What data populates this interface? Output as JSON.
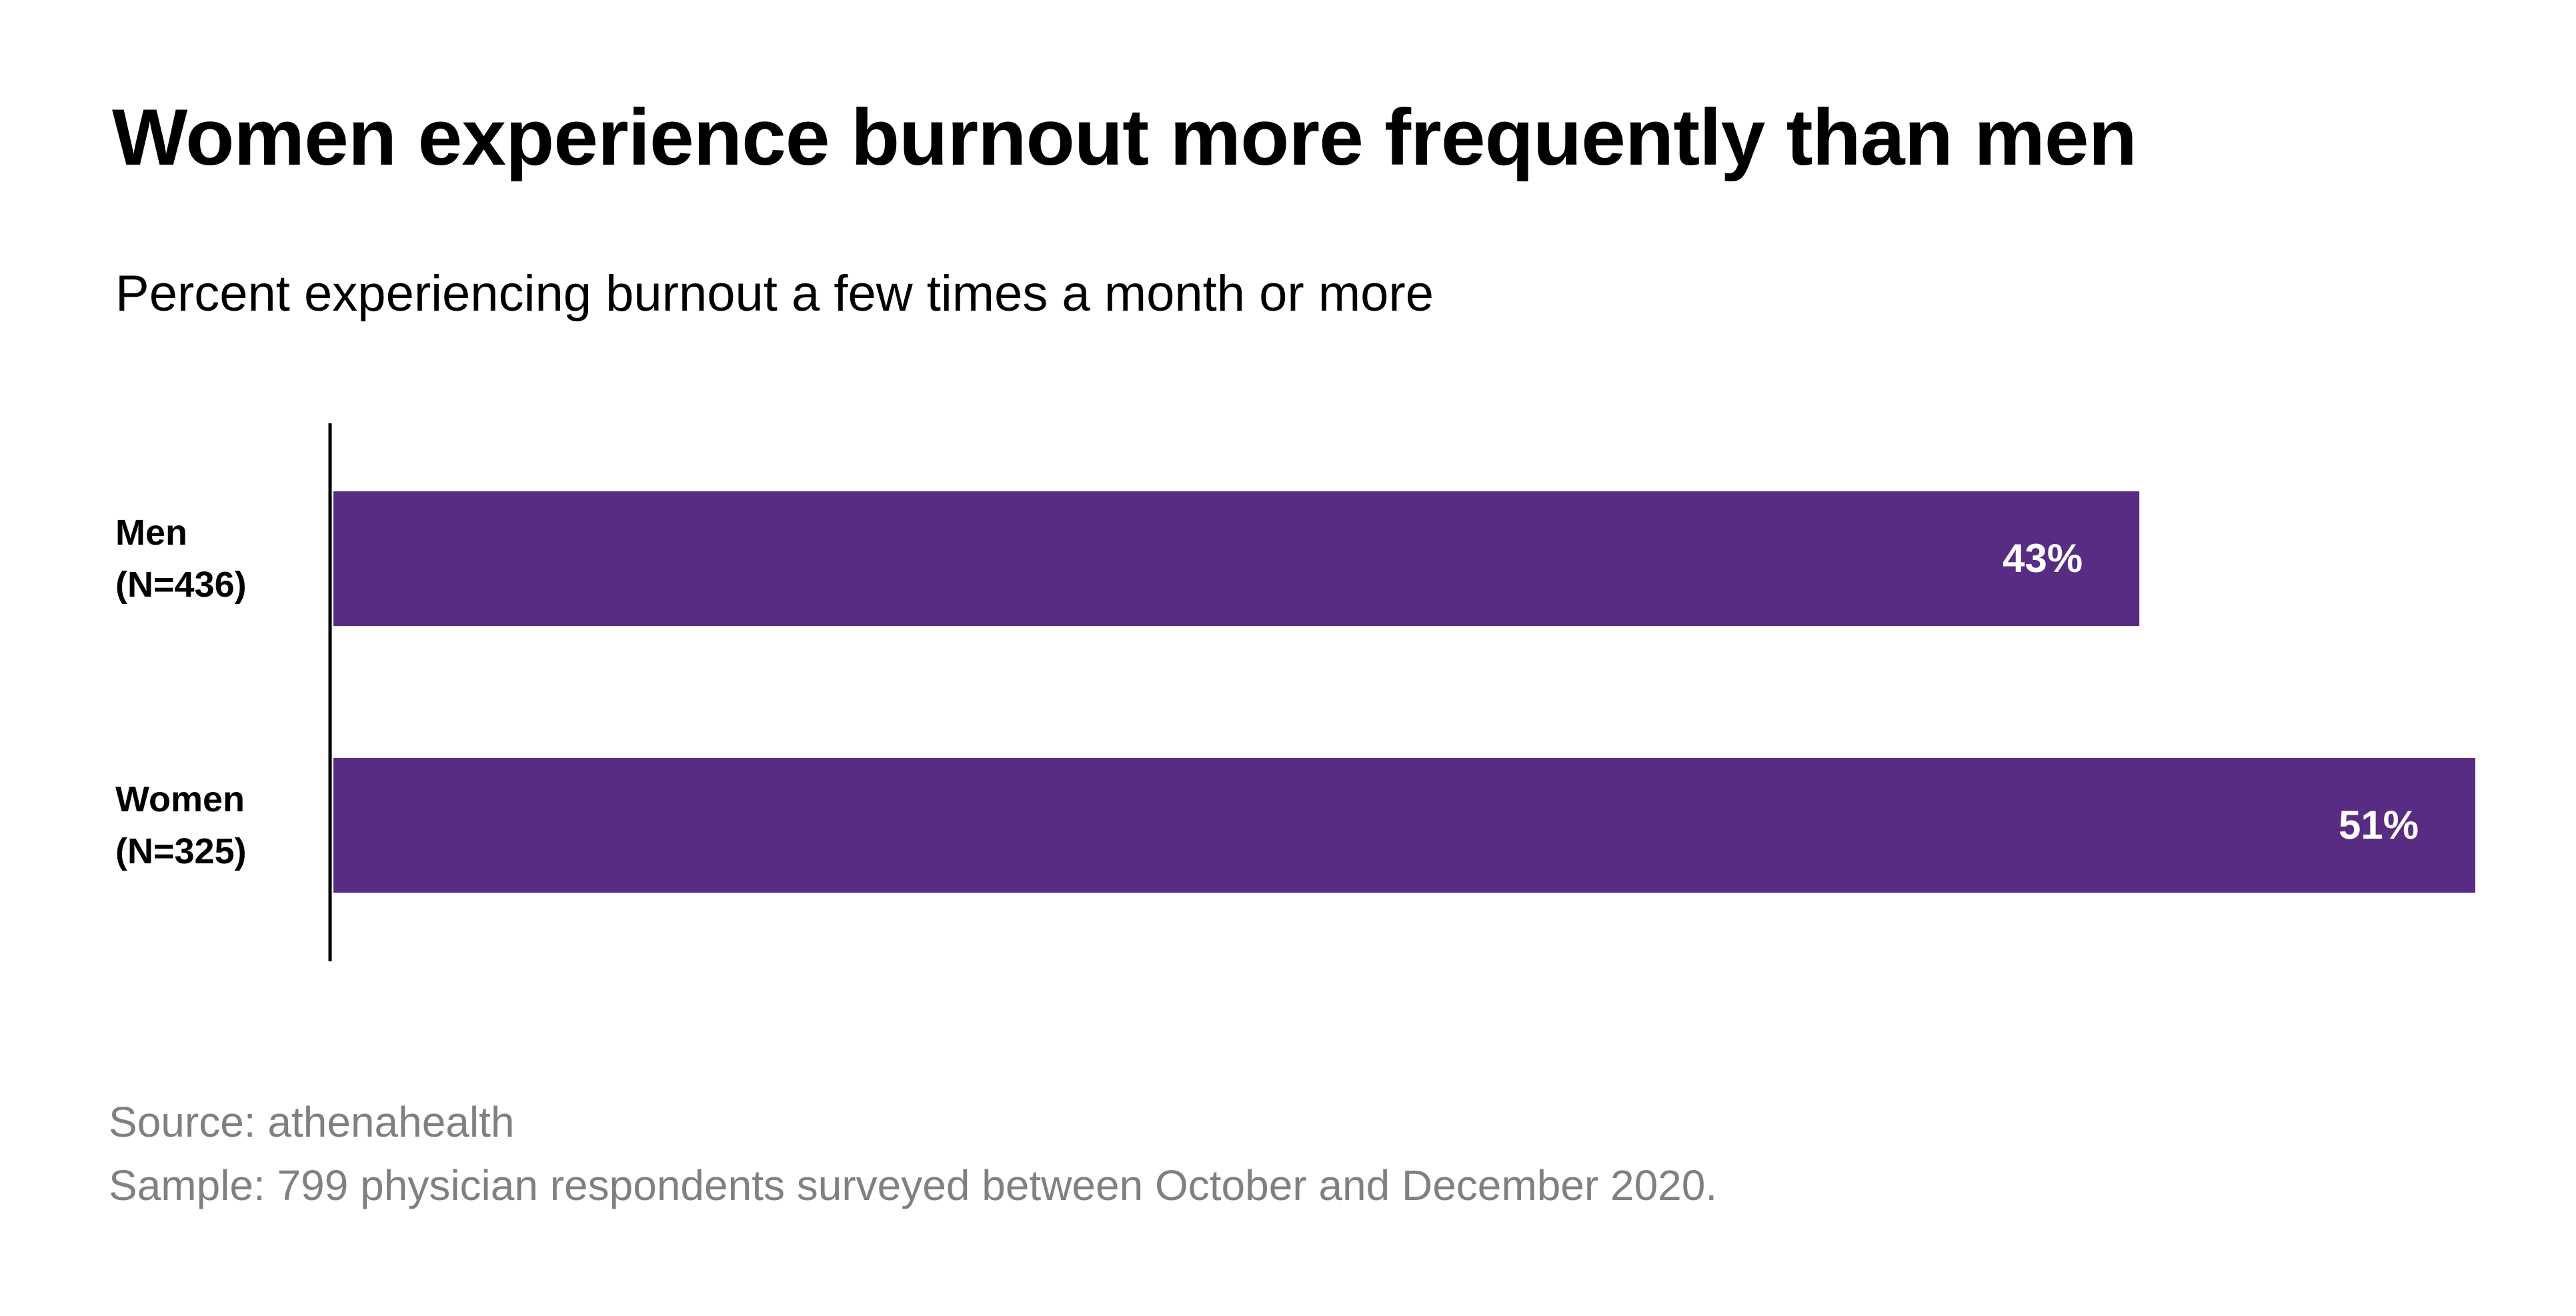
{
  "chart_data": {
    "type": "bar",
    "orientation": "horizontal",
    "title": "Women experience burnout more frequently than men",
    "subtitle": "Percent experiencing burnout a few times a month or more",
    "categories": [
      {
        "name": "Men",
        "sample": "(N=436)"
      },
      {
        "name": "Women",
        "sample": "(N=325)"
      }
    ],
    "values": [
      43,
      51
    ],
    "data_labels": [
      "43%",
      "51%"
    ],
    "xlim": [
      0,
      51
    ],
    "grid": false,
    "legend": "none",
    "bar_color": "#582c83",
    "axis_color": "#000000"
  },
  "footer": {
    "source": "Source: athenahealth",
    "sample": "Sample: 799 physician respondents surveyed between October and December 2020."
  }
}
